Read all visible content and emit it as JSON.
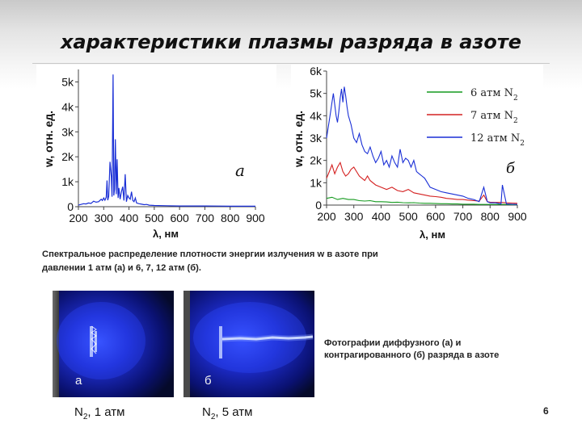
{
  "slide": {
    "title": "характеристики плазмы разряда в азоте",
    "page_number": "6"
  },
  "captions": {
    "spectra_line1": "Спектральное распределение плотности энергии излучения w в азоте при",
    "spectra_line2": "давлении 1 атм (а) и 6, 7, 12 атм (б).",
    "photos": "Фотографии диффузного (а) и контрагированного (б) разряда в азоте"
  },
  "photos": [
    {
      "letter": "а",
      "gas": "N",
      "sub": "2",
      "pressure": ", 1 атм"
    },
    {
      "letter": "б",
      "gas": "N",
      "sub": "2",
      "pressure": ", 5 атм"
    }
  ],
  "colors": {
    "blue": "#1a2fd6",
    "red": "#d42020",
    "green": "#149a1e"
  },
  "chart_data": [
    {
      "type": "line",
      "annotation": "а",
      "xlabel": "λ, нм",
      "ylabel": "w, отн. ед.",
      "xlim": [
        200,
        900
      ],
      "ylim": [
        0,
        5500
      ],
      "xticks": [
        "200",
        "300",
        "400",
        "500",
        "600",
        "700",
        "800",
        "900"
      ],
      "yticks": [
        "0",
        "1k",
        "2k",
        "3k",
        "4k",
        "5k"
      ],
      "series": [
        {
          "color": "#1a2fd6",
          "x": [
            200,
            210,
            220,
            230,
            240,
            250,
            260,
            270,
            280,
            290,
            295,
            300,
            305,
            310,
            313,
            316,
            320,
            325,
            330,
            333,
            337,
            340,
            343,
            346,
            350,
            353,
            357,
            360,
            365,
            370,
            375,
            380,
            385,
            390,
            395,
            400,
            405,
            410,
            415,
            420,
            425,
            430,
            440,
            450,
            460,
            470,
            480,
            500,
            550,
            600,
            650,
            700,
            750,
            800,
            850,
            900
          ],
          "y": [
            60,
            90,
            120,
            110,
            150,
            130,
            220,
            180,
            200,
            300,
            250,
            350,
            260,
            380,
            1050,
            260,
            420,
            1800,
            1200,
            400,
            5300,
            450,
            700,
            2700,
            500,
            1900,
            350,
            750,
            300,
            600,
            800,
            250,
            1300,
            200,
            450,
            350,
            300,
            600,
            250,
            200,
            350,
            150,
            120,
            100,
            80,
            90,
            60,
            50,
            40,
            30,
            30,
            30,
            25,
            20,
            20,
            20
          ]
        }
      ]
    },
    {
      "type": "line",
      "annotation": "б",
      "xlabel": "λ, нм",
      "ylabel": "w, отн. ед.",
      "xlim": [
        200,
        900
      ],
      "ylim": [
        0,
        6000
      ],
      "xticks": [
        "200",
        "300",
        "400",
        "500",
        "600",
        "700",
        "800",
        "900"
      ],
      "yticks": [
        "0",
        "1k",
        "2k",
        "3k",
        "4k",
        "5k",
        "6k"
      ],
      "legend_position": "top-right",
      "series": [
        {
          "name": "6 атм N2",
          "color": "#149a1e",
          "x": [
            200,
            220,
            240,
            260,
            280,
            300,
            320,
            340,
            360,
            380,
            400,
            420,
            440,
            460,
            480,
            500,
            520,
            540,
            560,
            580,
            600,
            620,
            640,
            660,
            680,
            700,
            720,
            740,
            760,
            780,
            800,
            820,
            840,
            860,
            880,
            900
          ],
          "y": [
            300,
            350,
            250,
            300,
            250,
            250,
            200,
            180,
            200,
            150,
            150,
            140,
            120,
            130,
            110,
            100,
            110,
            90,
            80,
            80,
            70,
            60,
            60,
            50,
            50,
            40,
            40,
            40,
            30,
            30,
            30,
            30,
            30,
            30,
            20,
            20
          ]
        },
        {
          "name": "7 атм N2",
          "color": "#d42020",
          "x": [
            200,
            210,
            220,
            230,
            240,
            250,
            260,
            270,
            280,
            290,
            300,
            310,
            320,
            330,
            340,
            350,
            360,
            380,
            400,
            420,
            440,
            460,
            480,
            500,
            520,
            540,
            560,
            580,
            600,
            620,
            640,
            660,
            680,
            700,
            720,
            740,
            760,
            777,
            790,
            800,
            820,
            840,
            860,
            880,
            900
          ],
          "y": [
            1200,
            1500,
            1800,
            1400,
            1700,
            1900,
            1500,
            1300,
            1400,
            1600,
            1700,
            1500,
            1300,
            1200,
            1100,
            1300,
            1100,
            900,
            800,
            700,
            800,
            650,
            600,
            700,
            550,
            500,
            450,
            400,
            380,
            350,
            300,
            280,
            250,
            250,
            220,
            200,
            180,
            450,
            150,
            130,
            120,
            120,
            100,
            90,
            80
          ]
        },
        {
          "name": "12 атм N2",
          "color": "#1a2fd6",
          "x": [
            200,
            205,
            210,
            215,
            220,
            225,
            230,
            235,
            240,
            245,
            250,
            255,
            260,
            265,
            270,
            275,
            280,
            290,
            300,
            310,
            320,
            330,
            340,
            350,
            360,
            370,
            380,
            390,
            400,
            410,
            420,
            430,
            440,
            450,
            460,
            470,
            480,
            490,
            500,
            510,
            520,
            530,
            540,
            550,
            560,
            580,
            600,
            620,
            640,
            660,
            680,
            700,
            720,
            740,
            760,
            777,
            790,
            800,
            820,
            840,
            845,
            860,
            880,
            900
          ],
          "y": [
            3000,
            3400,
            3800,
            4200,
            4600,
            5000,
            4500,
            4000,
            3700,
            4200,
            4800,
            5200,
            4600,
            5300,
            4900,
            4400,
            4000,
            3600,
            3000,
            2800,
            3200,
            2700,
            2400,
            2300,
            2600,
            2200,
            1900,
            2100,
            2400,
            1800,
            2000,
            1700,
            2200,
            1900,
            1700,
            2500,
            1900,
            2100,
            2000,
            1700,
            2000,
            1500,
            1400,
            1300,
            1200,
            800,
            700,
            600,
            550,
            500,
            450,
            400,
            300,
            250,
            150,
            800,
            150,
            100,
            100,
            50,
            900,
            50,
            40,
            30
          ]
        }
      ]
    }
  ]
}
